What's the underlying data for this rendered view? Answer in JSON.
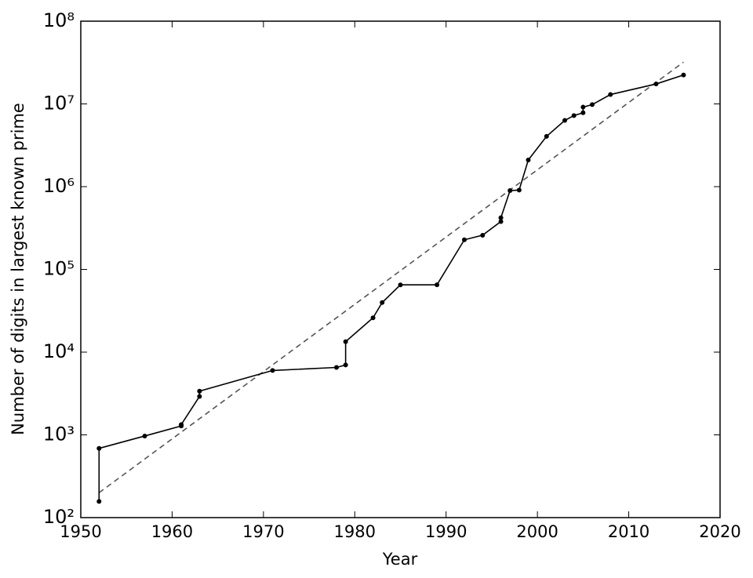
{
  "chart_data": {
    "type": "line",
    "xlabel": "Year",
    "ylabel": "Number of digits in largest known prime",
    "log_y": true,
    "xlim": [
      1950,
      2020
    ],
    "xticks": [
      1950,
      1960,
      1970,
      1980,
      1990,
      2000,
      2010,
      2020
    ],
    "ylim": [
      100,
      100000000
    ],
    "yticks": [
      {
        "value": 100,
        "label": "10²"
      },
      {
        "value": 1000,
        "label": "10³"
      },
      {
        "value": 10000,
        "label": "10⁴"
      },
      {
        "value": 100000,
        "label": "10⁵"
      },
      {
        "value": 1000000,
        "label": "10⁶"
      },
      {
        "value": 10000000,
        "label": "10⁷"
      },
      {
        "value": 100000000,
        "label": "10⁸"
      }
    ],
    "series": [
      {
        "color": "#000000",
        "style": "solid",
        "markers": true,
        "x": [
          1952,
          1952,
          1957,
          1961,
          1961,
          1963,
          1963,
          1971,
          1978,
          1979,
          1979,
          1982,
          1983,
          1985,
          1989,
          1992,
          1994,
          1996,
          1996,
          1997,
          1998,
          1999,
          2001,
          2003,
          2004,
          2005,
          2005,
          2006,
          2008,
          2013,
          2016
        ],
        "values": [
          157,
          687,
          969,
          1281,
          1332,
          2917,
          3376,
          6002,
          6533,
          6987,
          13395,
          25962,
          39751,
          65050,
          65087,
          227832,
          258716,
          378632,
          420921,
          895932,
          909526,
          2098960,
          4053946,
          6320430,
          7235733,
          7816230,
          9152052,
          9808358,
          12978189,
          17425170,
          22338618
        ]
      },
      {
        "color": "#555555",
        "style": "dashed",
        "markers": false,
        "x": [
          1952,
          2016
        ],
        "values": [
          200,
          32000000
        ]
      }
    ]
  }
}
